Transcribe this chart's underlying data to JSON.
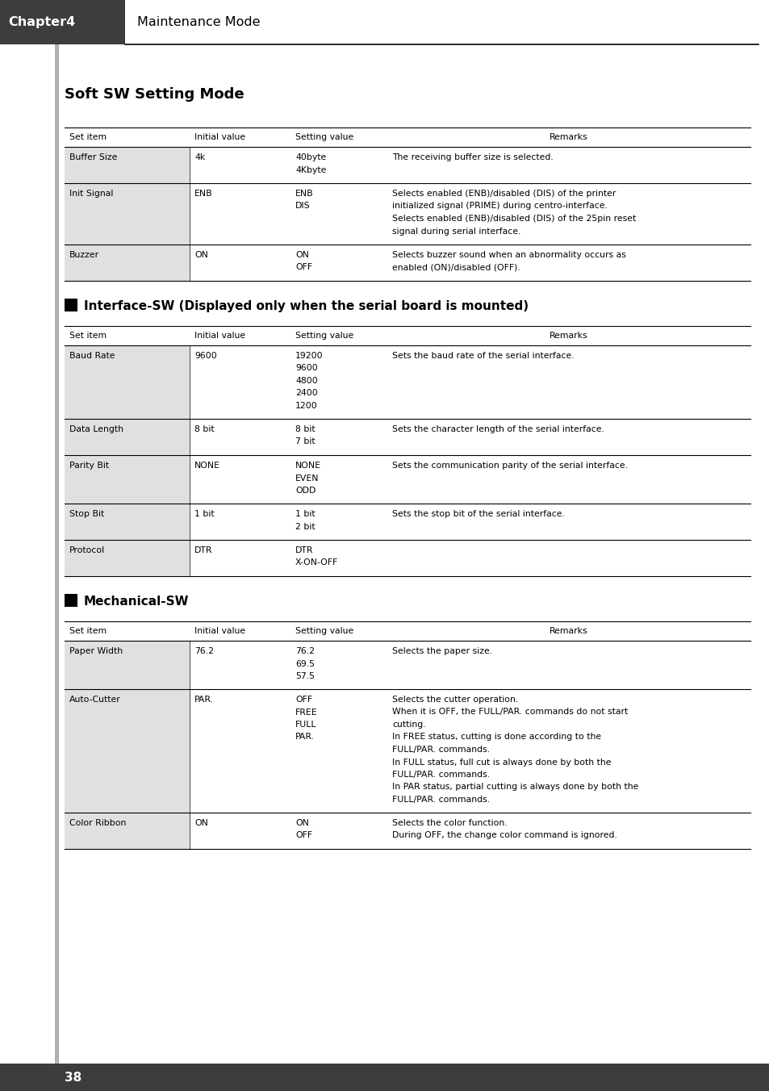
{
  "page_bg": "#ffffff",
  "header_bg": "#3d3d3d",
  "header_text": "Chapter4",
  "header_sub": "Maintenance Mode",
  "title": "Soft SW Setting Mode",
  "footer_text": "38",
  "col_headers": [
    "Set item",
    "Initial value",
    "Setting value",
    "Remarks"
  ],
  "table1_rows": [
    {
      "item": "Buffer Size",
      "initial": "4k",
      "setting": "40byte\n4Kbyte",
      "remarks": "The receiving buffer size is selected."
    },
    {
      "item": "Init Signal",
      "initial": "ENB",
      "setting": "ENB\nDIS",
      "remarks": "Selects enabled (ENB)/disabled (DIS) of the printer\ninitialized signal (PRIME) during centro-interface.\nSelects enabled (ENB)/disabled (DIS) of the 25pin reset\nsignal during serial interface."
    },
    {
      "item": "Buzzer",
      "initial": "ON",
      "setting": "ON\nOFF",
      "remarks": "Selects buzzer sound when an abnormality occurs as\nenabled (ON)/disabled (OFF)."
    }
  ],
  "section2_title": "Interface-SW (Displayed only when the serial board is mounted)",
  "table2_rows": [
    {
      "item": "Baud Rate",
      "initial": "9600",
      "setting": "19200\n9600\n4800\n2400\n1200",
      "remarks": "Sets the baud rate of the serial interface."
    },
    {
      "item": "Data Length",
      "initial": "8 bit",
      "setting": "8 bit\n7 bit",
      "remarks": "Sets the character length of the serial interface."
    },
    {
      "item": "Parity Bit",
      "initial": "NONE",
      "setting": "NONE\nEVEN\nODD",
      "remarks": "Sets the communication parity of the serial interface."
    },
    {
      "item": "Stop Bit",
      "initial": "1 bit",
      "setting": "1 bit\n2 bit",
      "remarks": "Sets the stop bit of the serial interface."
    },
    {
      "item": "Protocol",
      "initial": "DTR",
      "setting": "DTR\nX-ON-OFF",
      "remarks": ""
    }
  ],
  "section3_title": "Mechanical-SW",
  "table3_rows": [
    {
      "item": "Paper Width",
      "initial": "76.2",
      "setting": "76.2\n69.5\n57.5",
      "remarks": "Selects the paper size."
    },
    {
      "item": "Auto-Cutter",
      "initial": "PAR.",
      "setting": "OFF\nFREE\nFULL\nPAR.",
      "remarks": "Selects the cutter operation.\nWhen it is OFF, the FULL/PAR. commands do not start\ncutting.\nIn FREE status, cutting is done according to the\nFULL/PAR. commands.\nIn FULL status, full cut is always done by both the\nFULL/PAR. commands.\nIn PAR status, partial cutting is always done by both the\nFULL/PAR. commands."
    },
    {
      "item": "Color Ribbon",
      "initial": "ON",
      "setting": "ON\nOFF",
      "remarks": "Selects the color function.\nDuring OFF, the change color command is ignored."
    }
  ]
}
